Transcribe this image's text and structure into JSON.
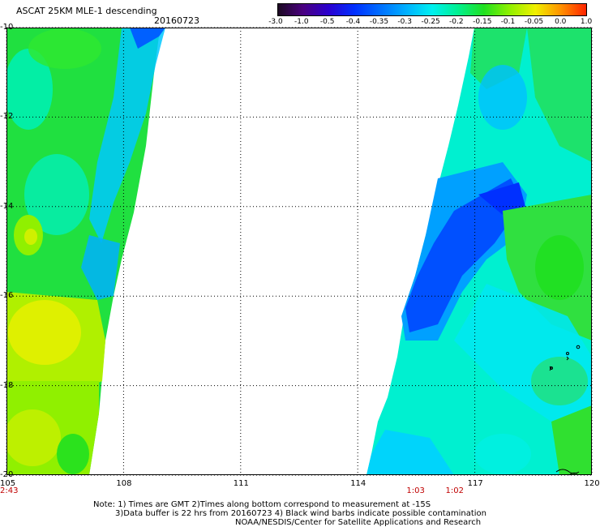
{
  "title": "ASCAT 25KM MLE-1 descending",
  "date": "20160723",
  "colorbar": {
    "labels": [
      "-3.0",
      "-1.0",
      "-0.5",
      "-0.4",
      "-0.35",
      "-0.3",
      "-0.25",
      "-0.2",
      "-0.15",
      "-0.1",
      "-0.05",
      "0.0",
      "1.0"
    ],
    "colors": [
      "#1a0a1e",
      "#4a0080",
      "#2a00d0",
      "#0030ff",
      "#0070ff",
      "#00b0ff",
      "#00f0f0",
      "#00f090",
      "#20e020",
      "#90f000",
      "#f0f000",
      "#ff9000",
      "#ff2000"
    ]
  },
  "axes": {
    "lat_labels": [
      "-10",
      "-12",
      "-14",
      "-16",
      "-18",
      "-20"
    ],
    "lon_labels": [
      "105",
      "108",
      "111",
      "114",
      "117",
      "120"
    ],
    "lat_range": [
      -20,
      -10
    ],
    "lon_range": [
      105,
      120
    ]
  },
  "times": [
    {
      "label": "2:43",
      "lon": 105
    },
    {
      "label": "1:03",
      "lon": 115.5
    },
    {
      "label": "1:02",
      "lon": 116.5
    }
  ],
  "notes": {
    "line1": "Note: 1) Times are GMT 2)Times along bottom correspond to measurement at -15S",
    "line2": "3)Data buffer is 22 hrs from 20160723 4) Black wind barbs indicate possible contamination",
    "line3": "NOAA/NESDIS/Center for Satellite Applications and Research"
  }
}
